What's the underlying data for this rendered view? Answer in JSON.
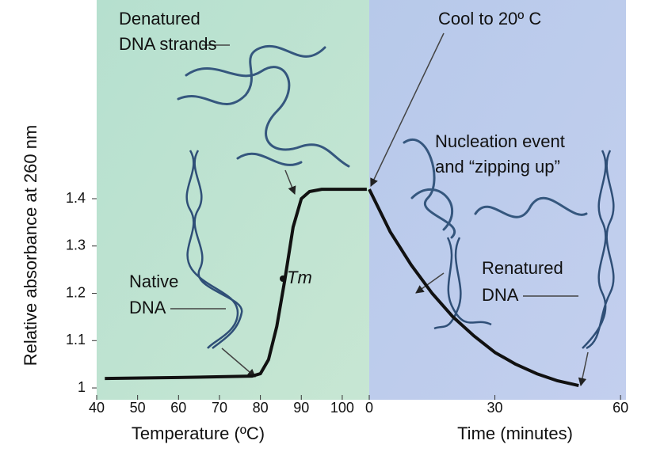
{
  "chart_data": [
    {
      "type": "line",
      "xlabel": "Temperature (ºC)",
      "ylabel": "Relative absorbance at 260 nm",
      "x": [
        42,
        60,
        78,
        80,
        82,
        84,
        86,
        88,
        90,
        92,
        95,
        100,
        106
      ],
      "values": [
        1.02,
        1.022,
        1.025,
        1.03,
        1.06,
        1.13,
        1.23,
        1.34,
        1.4,
        1.415,
        1.42,
        1.42,
        1.42
      ],
      "color": "#111111",
      "xlim": [
        40,
        106.6
      ],
      "xticks": [
        40,
        50,
        60,
        70,
        80,
        90,
        100
      ],
      "ylim": [
        0.975,
        1.82
      ],
      "yticks": [
        1.0,
        1.1,
        1.2,
        1.3,
        1.4
      ],
      "annotations": [
        [
          "Denatured",
          "DNA strands"
        ],
        [
          "Native",
          "DNA"
        ],
        [
          "Tm"
        ]
      ]
    },
    {
      "type": "line",
      "xlabel": "Time (minutes)",
      "x": [
        0,
        5,
        10,
        15,
        20,
        25,
        30,
        35,
        40,
        45,
        50
      ],
      "values": [
        1.42,
        1.33,
        1.26,
        1.2,
        1.15,
        1.11,
        1.075,
        1.05,
        1.03,
        1.015,
        1.005
      ],
      "color": "#111111",
      "xlim": [
        0,
        61.3
      ],
      "xticks": [
        0,
        30,
        60
      ],
      "ylim": [
        0.975,
        1.82
      ],
      "annotations": [
        [
          "Cool to 20º C"
        ],
        [
          "Nucleation event",
          "and “zipping up”"
        ],
        [
          "Renatured",
          "DNA"
        ]
      ]
    }
  ]
}
